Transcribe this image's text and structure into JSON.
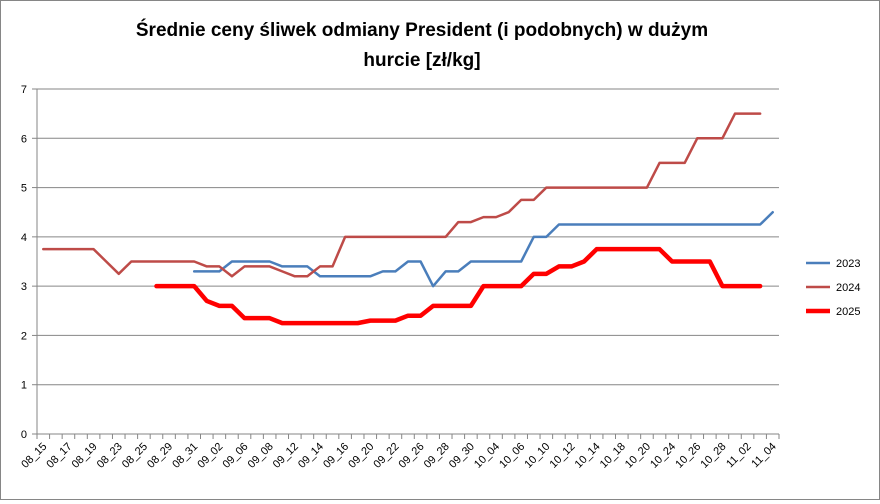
{
  "chart_data": {
    "type": "line",
    "title_lines": [
      "Średnie ceny śliwek odmiany President (i podobnych) w dużym",
      "hurcie [zł/kg]"
    ],
    "xlabel": "",
    "ylabel": "",
    "ylim": [
      0,
      7
    ],
    "yticks": [
      "0",
      "1",
      "2",
      "3",
      "4",
      "5",
      "6",
      "7"
    ],
    "grid": true,
    "legend_position": "right",
    "x": [
      "08_15",
      "08_16",
      "08_17",
      "08_18",
      "08_19",
      "08_20",
      "08_23",
      "08_24",
      "08_25",
      "08_26",
      "08_29",
      "08_30",
      "08_31",
      "09_01",
      "09_02",
      "09_03",
      "09_06",
      "09_07",
      "09_08",
      "09_09",
      "09_12",
      "09_13",
      "09_14",
      "09_15",
      "09_16",
      "09_17",
      "09_20",
      "09_21",
      "09_22",
      "09_23",
      "09_26",
      "09_27",
      "09_28",
      "09_29",
      "09_30",
      "10_01",
      "10_04",
      "10_05",
      "10_06",
      "10_07",
      "10_10",
      "10_11",
      "10_12",
      "10_13",
      "10_14",
      "10_15",
      "10_18",
      "10_19",
      "10_20",
      "10_21",
      "10_24",
      "10_25",
      "10_26",
      "10_27",
      "10_28",
      "10_29",
      "11_02",
      "11_03",
      "11_04"
    ],
    "x_tick_labels": [
      "08_15",
      "08_17",
      "08_19",
      "08_23",
      "08_25",
      "08_29",
      "08_31",
      "09_02",
      "09_06",
      "09_08",
      "09_12",
      "09_14",
      "09_16",
      "09_20",
      "09_22",
      "09_26",
      "09_28",
      "09_30",
      "10_04",
      "10_06",
      "10_10",
      "10_12",
      "10_14",
      "10_18",
      "10_20",
      "10_24",
      "10_26",
      "10_28",
      "11_02",
      "11_04"
    ],
    "series": [
      {
        "name": "2023",
        "color": "#4a7ebb",
        "values": [
          null,
          null,
          null,
          null,
          null,
          null,
          null,
          null,
          null,
          null,
          null,
          null,
          3.3,
          3.3,
          3.3,
          3.5,
          3.5,
          3.5,
          3.5,
          3.4,
          3.4,
          3.4,
          3.2,
          3.2,
          3.2,
          3.2,
          3.2,
          3.3,
          3.3,
          3.5,
          3.5,
          3.0,
          3.3,
          3.3,
          3.5,
          3.5,
          3.5,
          3.5,
          3.5,
          4.0,
          4.0,
          4.25,
          4.25,
          4.25,
          4.25,
          4.25,
          4.25,
          4.25,
          4.25,
          4.25,
          4.25,
          4.25,
          4.25,
          4.25,
          4.25,
          4.25,
          4.25,
          4.25,
          4.5
        ]
      },
      {
        "name": "2024",
        "color": "#be4b48",
        "values": [
          3.75,
          3.75,
          3.75,
          3.75,
          3.75,
          3.5,
          3.25,
          3.5,
          3.5,
          3.5,
          3.5,
          3.5,
          3.5,
          3.4,
          3.4,
          3.2,
          3.4,
          3.4,
          3.4,
          3.3,
          3.2,
          3.2,
          3.4,
          3.4,
          4.0,
          4.0,
          4.0,
          4.0,
          4.0,
          4.0,
          4.0,
          4.0,
          4.0,
          4.3,
          4.3,
          4.4,
          4.4,
          4.5,
          4.75,
          4.75,
          5.0,
          5.0,
          5.0,
          5.0,
          5.0,
          5.0,
          5.0,
          5.0,
          5.0,
          5.5,
          5.5,
          5.5,
          6.0,
          6.0,
          6.0,
          6.5,
          6.5,
          6.5,
          null
        ]
      },
      {
        "name": "2025",
        "color": "#ff0000",
        "values": [
          null,
          null,
          null,
          null,
          null,
          null,
          null,
          null,
          null,
          3.0,
          3.0,
          3.0,
          3.0,
          2.7,
          2.6,
          2.6,
          2.35,
          2.35,
          2.35,
          2.25,
          2.25,
          2.25,
          2.25,
          2.25,
          2.25,
          2.25,
          2.3,
          2.3,
          2.3,
          2.4,
          2.4,
          2.6,
          2.6,
          2.6,
          2.6,
          3.0,
          3.0,
          3.0,
          3.0,
          3.25,
          3.25,
          3.4,
          3.4,
          3.5,
          3.75,
          3.75,
          3.75,
          3.75,
          3.75,
          3.75,
          3.5,
          3.5,
          3.5,
          3.5,
          3.0,
          3.0,
          3.0,
          3.0,
          null
        ]
      }
    ]
  }
}
